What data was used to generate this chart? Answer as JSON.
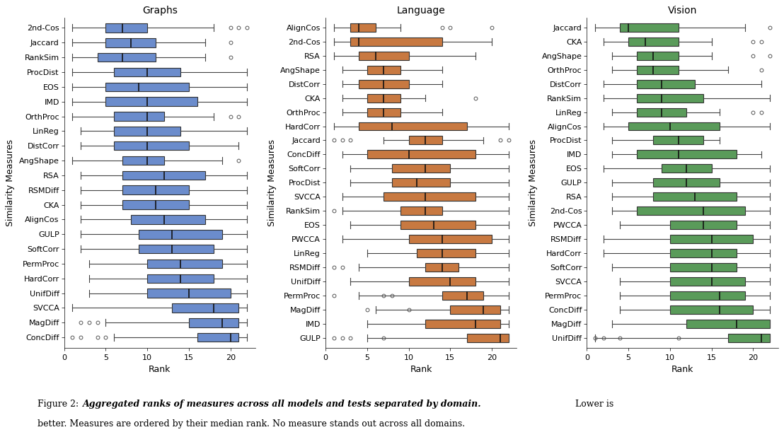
{
  "graphs": {
    "title": "Graphs",
    "color": "#6b8ccc",
    "ylabel": "Similarity Measures",
    "xlabel": "Rank",
    "measures": [
      {
        "name": "2nd-Cos",
        "wl": 1,
        "q1": 5,
        "med": 7,
        "q3": 10,
        "wh": 18,
        "fliers": [
          20,
          21,
          22
        ]
      },
      {
        "name": "Jaccard",
        "wl": 1,
        "q1": 5,
        "med": 8,
        "q3": 11,
        "wh": 17,
        "fliers": [
          20
        ]
      },
      {
        "name": "RankSim",
        "wl": 1,
        "q1": 4,
        "med": 7,
        "q3": 11,
        "wh": 17,
        "fliers": [
          20
        ]
      },
      {
        "name": "ProcDist",
        "wl": 1,
        "q1": 6,
        "med": 10,
        "q3": 14,
        "wh": 22,
        "fliers": []
      },
      {
        "name": "EOS",
        "wl": 1,
        "q1": 5,
        "med": 9,
        "q3": 15,
        "wh": 22,
        "fliers": []
      },
      {
        "name": "IMD",
        "wl": 1,
        "q1": 5,
        "med": 10,
        "q3": 16,
        "wh": 22,
        "fliers": []
      },
      {
        "name": "OrthProc",
        "wl": 1,
        "q1": 6,
        "med": 10,
        "q3": 12,
        "wh": 18,
        "fliers": [
          20,
          21
        ]
      },
      {
        "name": "LinReg",
        "wl": 2,
        "q1": 6,
        "med": 10,
        "q3": 14,
        "wh": 22,
        "fliers": []
      },
      {
        "name": "DistCorr",
        "wl": 2,
        "q1": 6,
        "med": 10,
        "q3": 15,
        "wh": 21,
        "fliers": []
      },
      {
        "name": "AngShape",
        "wl": 1,
        "q1": 7,
        "med": 10,
        "q3": 12,
        "wh": 19,
        "fliers": [
          21
        ]
      },
      {
        "name": "RSA",
        "wl": 2,
        "q1": 7,
        "med": 12,
        "q3": 17,
        "wh": 22,
        "fliers": []
      },
      {
        "name": "RSMDiff",
        "wl": 2,
        "q1": 7,
        "med": 11,
        "q3": 15,
        "wh": 22,
        "fliers": []
      },
      {
        "name": "CKA",
        "wl": 2,
        "q1": 7,
        "med": 11,
        "q3": 15,
        "wh": 22,
        "fliers": []
      },
      {
        "name": "AlignCos",
        "wl": 2,
        "q1": 8,
        "med": 12,
        "q3": 17,
        "wh": 22,
        "fliers": []
      },
      {
        "name": "GULP",
        "wl": 2,
        "q1": 9,
        "med": 13,
        "q3": 19,
        "wh": 22,
        "fliers": []
      },
      {
        "name": "SoftCorr",
        "wl": 2,
        "q1": 9,
        "med": 13,
        "q3": 18,
        "wh": 22,
        "fliers": []
      },
      {
        "name": "PermProc",
        "wl": 3,
        "q1": 10,
        "med": 14,
        "q3": 19,
        "wh": 22,
        "fliers": []
      },
      {
        "name": "HardCorr",
        "wl": 3,
        "q1": 10,
        "med": 14,
        "q3": 18,
        "wh": 22,
        "fliers": []
      },
      {
        "name": "UnifDiff",
        "wl": 3,
        "q1": 10,
        "med": 15,
        "q3": 20,
        "wh": 22,
        "fliers": []
      },
      {
        "name": "SVCCA",
        "wl": 1,
        "q1": 13,
        "med": 18,
        "q3": 21,
        "wh": 22,
        "fliers": []
      },
      {
        "name": "MagDiff",
        "wl": 5,
        "q1": 15,
        "med": 19,
        "q3": 21,
        "wh": 22,
        "fliers": [
          2,
          3,
          4
        ]
      },
      {
        "name": "ConcDiff",
        "wl": 6,
        "q1": 16,
        "med": 20,
        "q3": 21,
        "wh": 22,
        "fliers": [
          1,
          2,
          4,
          5
        ]
      }
    ]
  },
  "language": {
    "title": "Language",
    "color": "#c87941",
    "ylabel": "Similarity Measures",
    "xlabel": "Rank",
    "measures": [
      {
        "name": "AlignCos",
        "wl": 1,
        "q1": 3,
        "med": 4,
        "q3": 6,
        "wh": 9,
        "fliers": [
          14,
          15,
          20
        ]
      },
      {
        "name": "2nd-Cos",
        "wl": 1,
        "q1": 3,
        "med": 4,
        "q3": 14,
        "wh": 20,
        "fliers": []
      },
      {
        "name": "RSA",
        "wl": 1,
        "q1": 4,
        "med": 6,
        "q3": 10,
        "wh": 18,
        "fliers": []
      },
      {
        "name": "AngShape",
        "wl": 2,
        "q1": 5,
        "med": 7,
        "q3": 9,
        "wh": 14,
        "fliers": []
      },
      {
        "name": "DistCorr",
        "wl": 2,
        "q1": 4,
        "med": 7,
        "q3": 10,
        "wh": 14,
        "fliers": []
      },
      {
        "name": "CKA",
        "wl": 2,
        "q1": 5,
        "med": 7,
        "q3": 9,
        "wh": 12,
        "fliers": [
          18
        ]
      },
      {
        "name": "OrthProc",
        "wl": 2,
        "q1": 5,
        "med": 7,
        "q3": 9,
        "wh": 14,
        "fliers": []
      },
      {
        "name": "HardCorr",
        "wl": 1,
        "q1": 4,
        "med": 8,
        "q3": 17,
        "wh": 22,
        "fliers": []
      },
      {
        "name": "Jaccard",
        "wl": 7,
        "q1": 10,
        "med": 12,
        "q3": 14,
        "wh": 19,
        "fliers": [
          1,
          2,
          3,
          21,
          22
        ]
      },
      {
        "name": "ConcDiff",
        "wl": 2,
        "q1": 5,
        "med": 10,
        "q3": 18,
        "wh": 22,
        "fliers": []
      },
      {
        "name": "SoftCorr",
        "wl": 3,
        "q1": 8,
        "med": 12,
        "q3": 15,
        "wh": 22,
        "fliers": []
      },
      {
        "name": "ProcDist",
        "wl": 3,
        "q1": 8,
        "med": 11,
        "q3": 15,
        "wh": 22,
        "fliers": []
      },
      {
        "name": "SVCCA",
        "wl": 2,
        "q1": 7,
        "med": 12,
        "q3": 18,
        "wh": 22,
        "fliers": []
      },
      {
        "name": "RankSim",
        "wl": 2,
        "q1": 9,
        "med": 12,
        "q3": 14,
        "wh": 22,
        "fliers": [
          1
        ]
      },
      {
        "name": "EOS",
        "wl": 3,
        "q1": 9,
        "med": 13,
        "q3": 18,
        "wh": 22,
        "fliers": []
      },
      {
        "name": "PWCCA",
        "wl": 2,
        "q1": 10,
        "med": 14,
        "q3": 20,
        "wh": 22,
        "fliers": []
      },
      {
        "name": "LinReg",
        "wl": 5,
        "q1": 11,
        "med": 14,
        "q3": 18,
        "wh": 22,
        "fliers": []
      },
      {
        "name": "RSMDiff",
        "wl": 4,
        "q1": 12,
        "med": 14,
        "q3": 16,
        "wh": 22,
        "fliers": [
          1,
          2
        ]
      },
      {
        "name": "UnifDiff",
        "wl": 3,
        "q1": 10,
        "med": 15,
        "q3": 18,
        "wh": 22,
        "fliers": []
      },
      {
        "name": "PermProc",
        "wl": 4,
        "q1": 14,
        "med": 17,
        "q3": 19,
        "wh": 22,
        "fliers": [
          1,
          7,
          8
        ]
      },
      {
        "name": "MagDiff",
        "wl": 6,
        "q1": 15,
        "med": 19,
        "q3": 21,
        "wh": 22,
        "fliers": [
          5,
          10
        ]
      },
      {
        "name": "IMD",
        "wl": 5,
        "q1": 12,
        "med": 18,
        "q3": 21,
        "wh": 22,
        "fliers": []
      },
      {
        "name": "GULP",
        "wl": 5,
        "q1": 17,
        "med": 21,
        "q3": 22,
        "wh": 22,
        "fliers": [
          1,
          2,
          3,
          7
        ]
      }
    ]
  },
  "vision": {
    "title": "Vision",
    "color": "#5a9b5a",
    "ylabel": "Similarity Measures",
    "xlabel": "Rank",
    "measures": [
      {
        "name": "Jaccard",
        "wl": 1,
        "q1": 4,
        "med": 5,
        "q3": 11,
        "wh": 19,
        "fliers": [
          22
        ]
      },
      {
        "name": "CKA",
        "wl": 2,
        "q1": 5,
        "med": 7,
        "q3": 11,
        "wh": 15,
        "fliers": [
          20,
          21
        ]
      },
      {
        "name": "AngShape",
        "wl": 3,
        "q1": 6,
        "med": 8,
        "q3": 11,
        "wh": 15,
        "fliers": [
          20,
          22
        ]
      },
      {
        "name": "OrthProc",
        "wl": 3,
        "q1": 6,
        "med": 8,
        "q3": 11,
        "wh": 17,
        "fliers": [
          21
        ]
      },
      {
        "name": "DistCorr",
        "wl": 2,
        "q1": 6,
        "med": 9,
        "q3": 13,
        "wh": 21,
        "fliers": []
      },
      {
        "name": "RankSim",
        "wl": 2,
        "q1": 6,
        "med": 9,
        "q3": 14,
        "wh": 22,
        "fliers": []
      },
      {
        "name": "LinReg",
        "wl": 3,
        "q1": 6,
        "med": 9,
        "q3": 12,
        "wh": 16,
        "fliers": [
          20,
          21
        ]
      },
      {
        "name": "AlignCos",
        "wl": 2,
        "q1": 5,
        "med": 10,
        "q3": 16,
        "wh": 22,
        "fliers": []
      },
      {
        "name": "ProcDist",
        "wl": 3,
        "q1": 8,
        "med": 11,
        "q3": 14,
        "wh": 16,
        "fliers": []
      },
      {
        "name": "IMD",
        "wl": 3,
        "q1": 6,
        "med": 11,
        "q3": 18,
        "wh": 21,
        "fliers": []
      },
      {
        "name": "EOS",
        "wl": 2,
        "q1": 9,
        "med": 12,
        "q3": 15,
        "wh": 22,
        "fliers": []
      },
      {
        "name": "GULP",
        "wl": 3,
        "q1": 8,
        "med": 12,
        "q3": 16,
        "wh": 22,
        "fliers": []
      },
      {
        "name": "RSA",
        "wl": 3,
        "q1": 8,
        "med": 13,
        "q3": 18,
        "wh": 22,
        "fliers": []
      },
      {
        "name": "2nd-Cos",
        "wl": 3,
        "q1": 6,
        "med": 14,
        "q3": 19,
        "wh": 22,
        "fliers": []
      },
      {
        "name": "PWCCA",
        "wl": 4,
        "q1": 10,
        "med": 14,
        "q3": 18,
        "wh": 22,
        "fliers": []
      },
      {
        "name": "RSMDiff",
        "wl": 2,
        "q1": 10,
        "med": 15,
        "q3": 20,
        "wh": 22,
        "fliers": []
      },
      {
        "name": "HardCorr",
        "wl": 2,
        "q1": 10,
        "med": 15,
        "q3": 18,
        "wh": 22,
        "fliers": []
      },
      {
        "name": "SoftCorr",
        "wl": 3,
        "q1": 10,
        "med": 15,
        "q3": 18,
        "wh": 22,
        "fliers": []
      },
      {
        "name": "SVCCA",
        "wl": 4,
        "q1": 10,
        "med": 15,
        "q3": 19,
        "wh": 22,
        "fliers": []
      },
      {
        "name": "PermProc",
        "wl": 4,
        "q1": 10,
        "med": 16,
        "q3": 19,
        "wh": 22,
        "fliers": []
      },
      {
        "name": "ConcDiff",
        "wl": 4,
        "q1": 10,
        "med": 16,
        "q3": 20,
        "wh": 22,
        "fliers": []
      },
      {
        "name": "MagDiff",
        "wl": 3,
        "q1": 12,
        "med": 18,
        "q3": 22,
        "wh": 22,
        "fliers": []
      },
      {
        "name": "UnifDiff",
        "wl": 1,
        "q1": 17,
        "med": 21,
        "q3": 22,
        "wh": 22,
        "fliers": [
          1,
          2,
          4,
          11
        ]
      }
    ]
  },
  "caption_prefix": "Figure 2: ",
  "caption_bold_italic": "Aggregated ranks of measures across all models and tests separated by domain.",
  "caption_line2": "better. Measures are ordered by their median rank. No measure stands out across all domains."
}
